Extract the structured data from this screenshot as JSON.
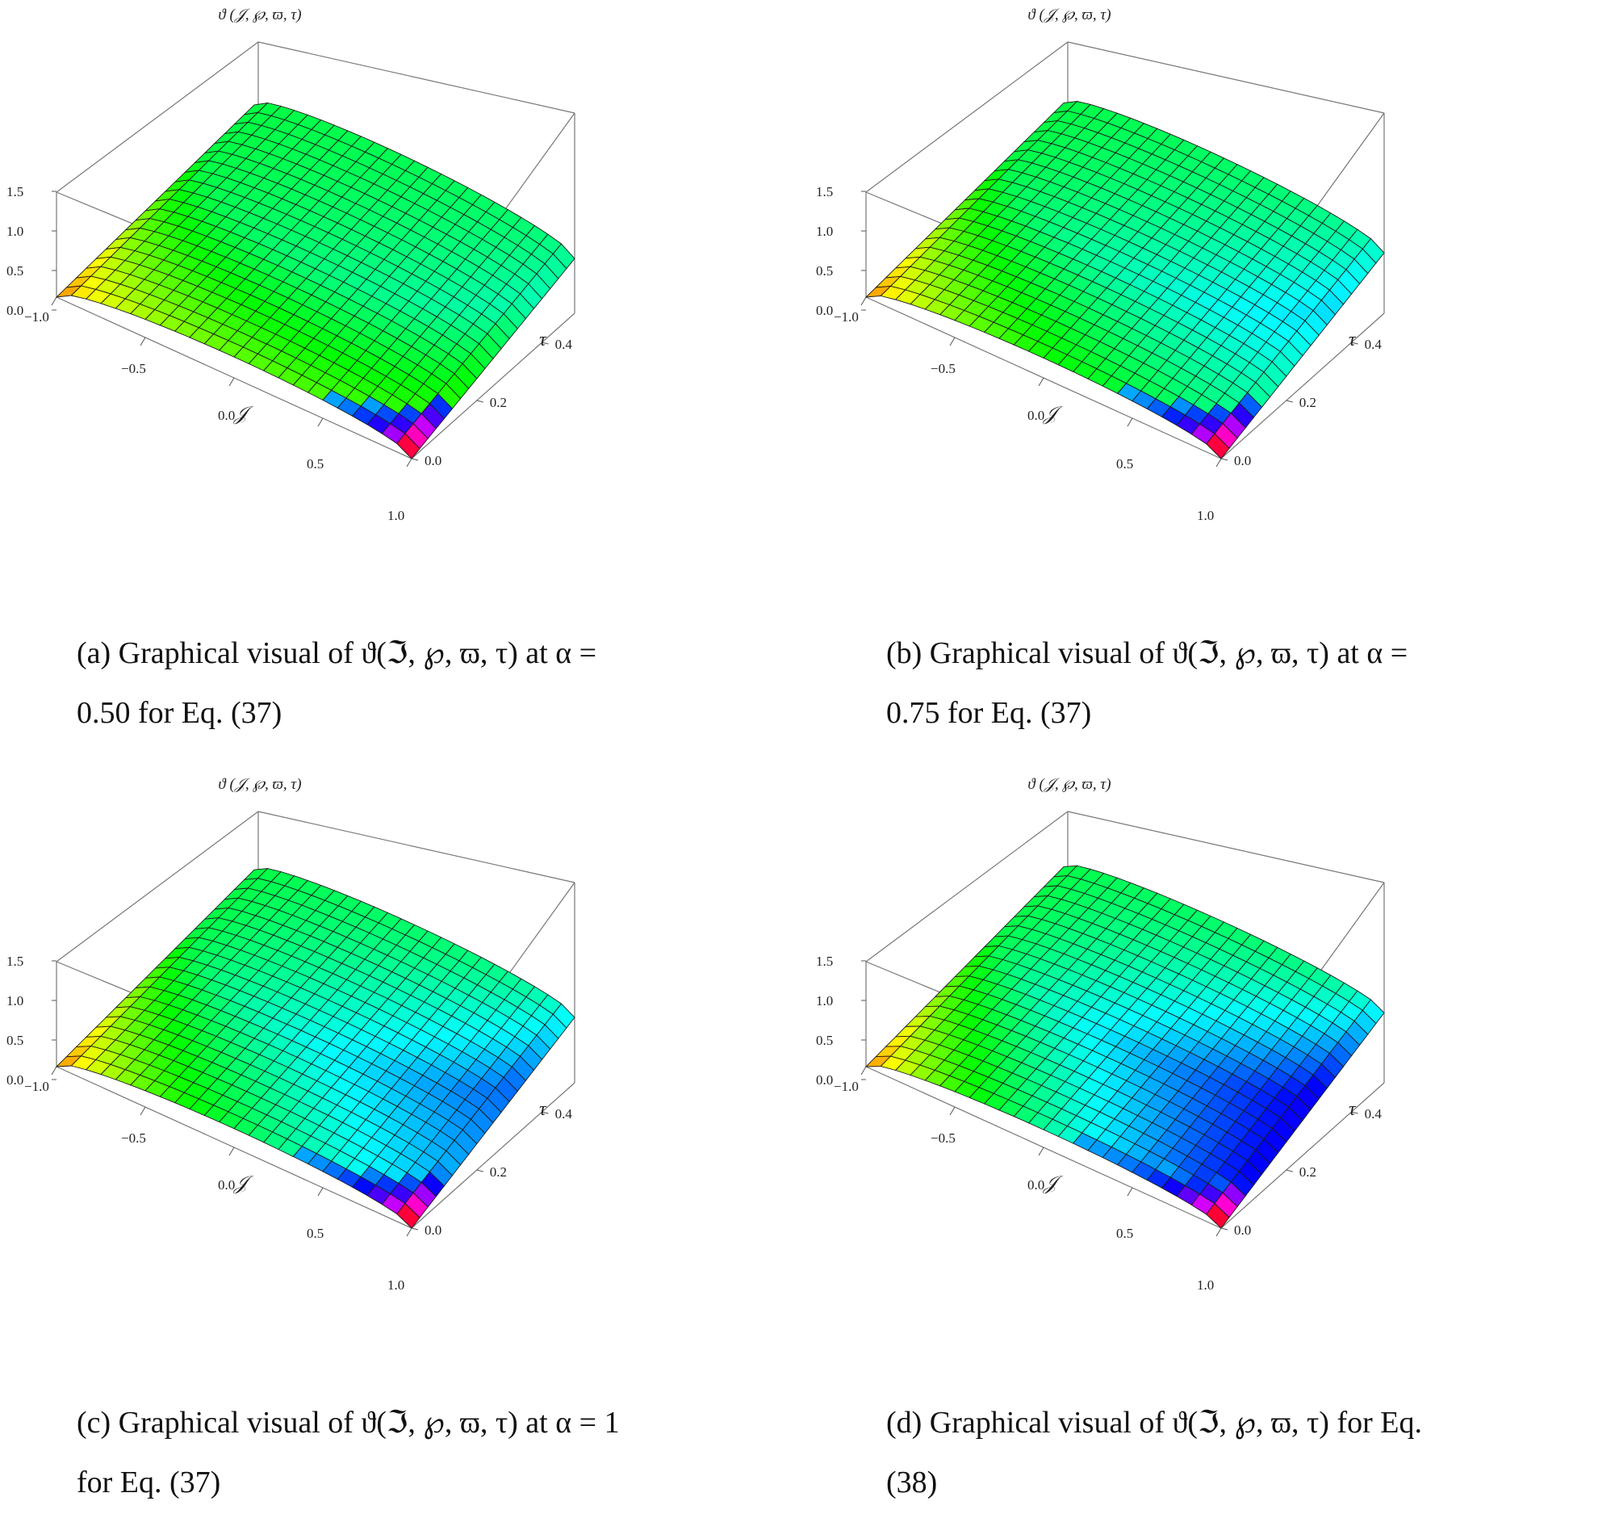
{
  "chart_data": [
    {
      "type": "surface3d",
      "panel": "a",
      "z_label": "ϑ (𝒥, ℘, ϖ, τ)",
      "x_label": "𝒥",
      "y_label": "τ",
      "x_ticks": [
        "−1.0",
        "−0.5",
        "0.0",
        "0.5",
        "1.0"
      ],
      "y_ticks": [
        "0.0",
        "0.2",
        "0.4"
      ],
      "z_ticks": [
        "0.0",
        "0.5",
        "1.0",
        "1.5"
      ],
      "xlim": [
        -1.0,
        1.0
      ],
      "ylim": [
        0.0,
        0.5
      ],
      "zlim": [
        0.0,
        1.5
      ],
      "grid_divisions": [
        24,
        20
      ],
      "surface": {
        "base": 0.78,
        "slope_tau": 1.45,
        "curvature": 0.12,
        "dip": 0.72
      },
      "corner_values": {
        "x-1_t0": 0.02,
        "x1_t0": 0.06,
        "x-1_t0.5": 1.22,
        "x1_t0.5": 0.93
      },
      "caption_line1": "(a) Graphical visual of ϑ(ℑ, ℘, ϖ, τ) at α =",
      "caption_line2": "0.50 for Eq. (37)"
    },
    {
      "type": "surface3d",
      "panel": "b",
      "z_label": "ϑ (𝒥, ℘, ϖ, τ)",
      "x_label": "𝒥",
      "y_label": "τ",
      "x_ticks": [
        "−1.0",
        "−0.5",
        "0.0",
        "0.5",
        "1.0"
      ],
      "y_ticks": [
        "0.0",
        "0.2",
        "0.4"
      ],
      "z_ticks": [
        "0.0",
        "0.5",
        "1.0",
        "1.5"
      ],
      "xlim": [
        -1.0,
        1.0
      ],
      "ylim": [
        0.0,
        0.5
      ],
      "zlim": [
        0.0,
        1.5
      ],
      "grid_divisions": [
        24,
        20
      ],
      "surface": {
        "base": 0.74,
        "slope_tau": 1.55,
        "curvature": 0.18,
        "dip": 0.6
      },
      "corner_values": {
        "x-1_t0": 0.0,
        "x1_t0": 0.0,
        "x-1_t0.5": 1.25,
        "x1_t0.5": 0.98
      },
      "caption_line1": "(b) Graphical visual of ϑ(ℑ, ℘, ϖ, τ) at α =",
      "caption_line2": "0.75 for Eq. (37)"
    },
    {
      "type": "surface3d",
      "panel": "c",
      "z_label": "ϑ (𝒥, ℘, ϖ, τ)",
      "x_label": "𝒥",
      "y_label": "τ",
      "x_ticks": [
        "−1.0",
        "−0.5",
        "0.0",
        "0.5",
        "1.0"
      ],
      "y_ticks": [
        "0.0",
        "0.2",
        "0.4"
      ],
      "z_ticks": [
        "0.0",
        "0.5",
        "1.0",
        "1.5"
      ],
      "xlim": [
        -1.0,
        1.0
      ],
      "ylim": [
        0.0,
        0.5
      ],
      "zlim": [
        0.0,
        1.5
      ],
      "grid_divisions": [
        24,
        20
      ],
      "surface": {
        "base": 0.7,
        "slope_tau": 1.65,
        "curvature": 0.22,
        "dip": 0.5
      },
      "corner_values": {
        "x-1_t0": 0.0,
        "x1_t0": 0.0,
        "x-1_t0.5": 1.28,
        "x1_t0.5": 1.02
      },
      "caption_line1": "(c) Graphical visual of ϑ(ℑ, ℘, ϖ, τ) at α = 1",
      "caption_line2": "for Eq. (37)"
    },
    {
      "type": "surface3d",
      "panel": "d",
      "z_label": "ϑ (𝒥, ℘, ϖ, τ)",
      "x_label": "𝒥",
      "y_label": "τ",
      "x_ticks": [
        "−1.0",
        "−0.5",
        "0.0",
        "0.5",
        "1.0"
      ],
      "y_ticks": [
        "0.0",
        "0.2",
        "0.4"
      ],
      "z_ticks": [
        "0.0",
        "0.5",
        "1.0",
        "1.5"
      ],
      "xlim": [
        -1.0,
        1.0
      ],
      "ylim": [
        0.0,
        0.5
      ],
      "zlim": [
        0.0,
        1.5
      ],
      "grid_divisions": [
        24,
        20
      ],
      "surface": {
        "base": 0.66,
        "slope_tau": 1.75,
        "curvature": 0.25,
        "dip": 0.45
      },
      "corner_values": {
        "x-1_t0": 0.0,
        "x1_t0": 0.0,
        "x-1_t0.5": 1.3,
        "x1_t0.5": 1.05
      },
      "caption_line1": "(d) Graphical visual of ϑ(ℑ, ℘, ϖ, τ) for Eq.",
      "caption_line2": "(38)"
    }
  ]
}
